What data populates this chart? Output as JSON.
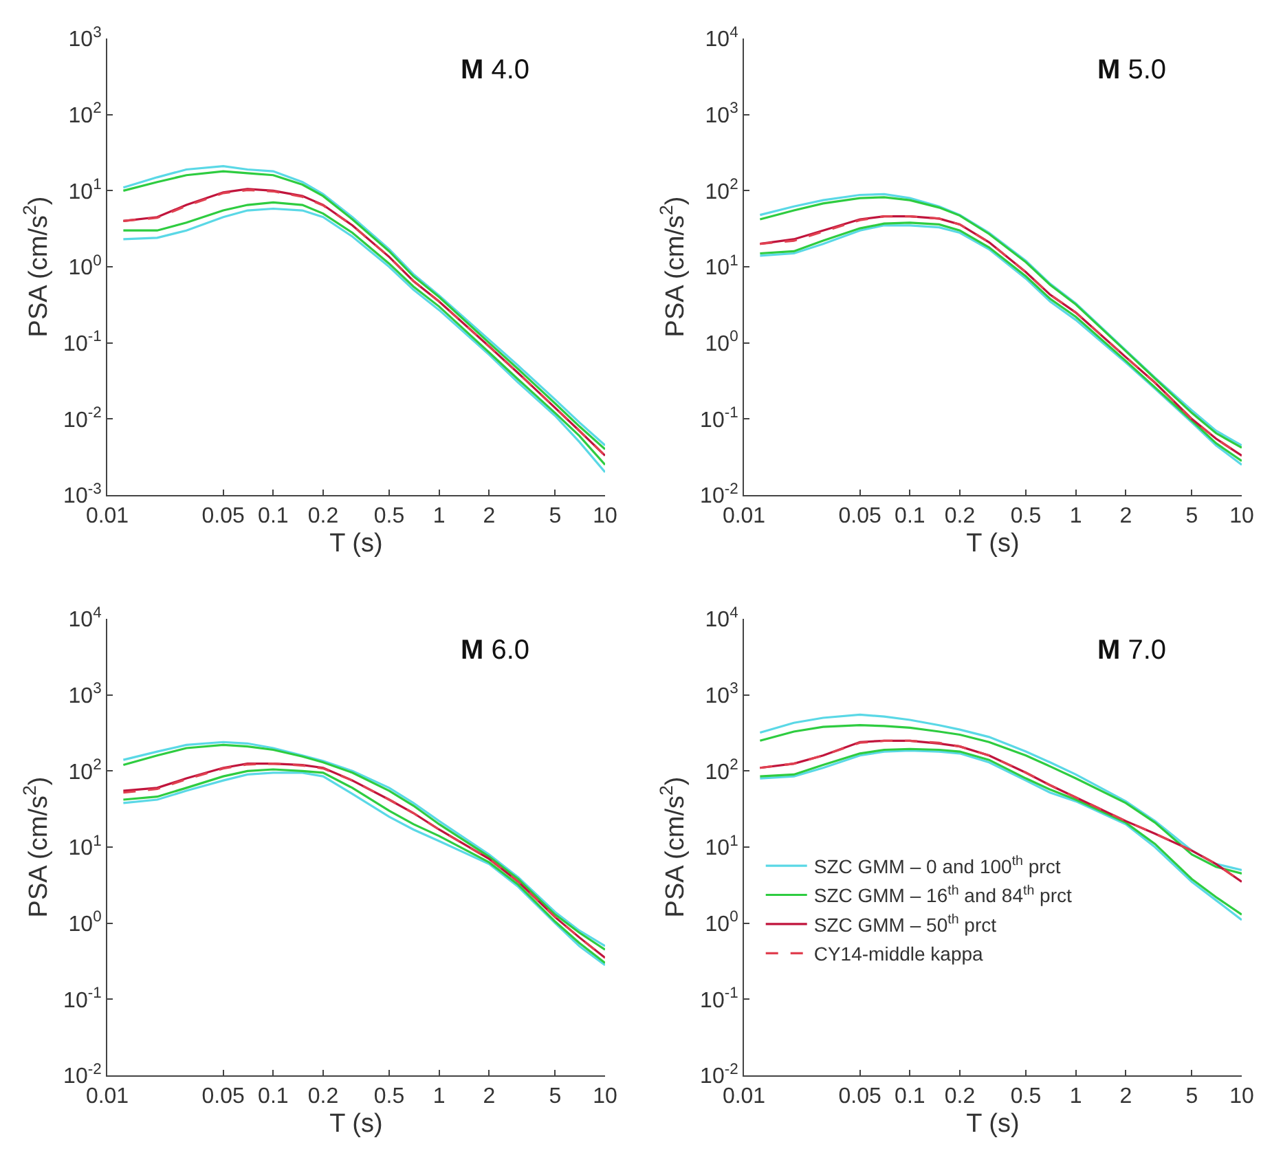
{
  "chart_data": [
    {
      "type": "line",
      "title": "M 4.0",
      "xlabel": "T (s)",
      "ylabel": "PSA (cm/s$^{2}$)",
      "log": "xy",
      "grid": false,
      "legend": false,
      "x": [
        0.0125,
        0.02,
        0.03,
        0.05,
        0.07,
        0.1,
        0.15,
        0.2,
        0.3,
        0.5,
        0.7,
        1,
        2,
        3,
        5,
        7,
        10
      ],
      "xlim": [
        0.01,
        10
      ],
      "xticks": [
        0.01,
        0.05,
        0.1,
        0.2,
        0.5,
        1,
        2,
        5,
        10
      ],
      "ylim": [
        0.001,
        1000
      ],
      "yticks": [
        {
          "value": 0.001,
          "label": "10$^{-3}$"
        },
        {
          "value": 0.01,
          "label": "10$^{-2}$"
        },
        {
          "value": 0.1,
          "label": "10$^{-1}$"
        },
        {
          "value": 1,
          "label": "10$^{0}$"
        },
        {
          "value": 10,
          "label": "10$^{1}$"
        },
        {
          "value": 100,
          "label": "10$^{2}$"
        },
        {
          "value": 1000,
          "label": "10$^{3}$"
        }
      ],
      "series": [
        {
          "color": "#5ad8e6",
          "values": [
            11,
            15,
            19,
            21,
            19,
            18,
            13,
            9,
            4.5,
            1.7,
            0.8,
            0.42,
            0.11,
            0.05,
            0.018,
            0.009,
            0.0045
          ]
        },
        {
          "color": "#5ad8e6",
          "values": [
            2.3,
            2.4,
            3,
            4.5,
            5.5,
            5.8,
            5.5,
            4.5,
            2.5,
            1.0,
            0.5,
            0.27,
            0.07,
            0.03,
            0.011,
            0.005,
            0.002
          ]
        },
        {
          "color": "#2ecc40",
          "values": [
            10,
            13,
            16,
            18,
            17,
            16,
            12,
            8.5,
            4.2,
            1.6,
            0.75,
            0.4,
            0.1,
            0.045,
            0.016,
            0.008,
            0.004
          ]
        },
        {
          "color": "#2ecc40",
          "values": [
            3,
            3,
            3.8,
            5.5,
            6.5,
            7,
            6.5,
            5,
            2.8,
            1.1,
            0.55,
            0.3,
            0.075,
            0.033,
            0.012,
            0.006,
            0.0025
          ]
        },
        {
          "color": "#c0143c",
          "values": [
            4,
            4.5,
            6.5,
            9.5,
            10.5,
            10,
            8.5,
            6.5,
            3.5,
            1.35,
            0.65,
            0.35,
            0.09,
            0.04,
            0.014,
            0.007,
            0.0033
          ]
        },
        {
          "color": "#e04050",
          "line_style": "dashed",
          "values": [
            4,
            4.4,
            6.3,
            9.3,
            10.2,
            9.8,
            8.3,
            6.4,
            3.5,
            1.35,
            0.65,
            0.35,
            0.09,
            0.04,
            0.014,
            0.007,
            0.0033
          ]
        }
      ]
    },
    {
      "type": "line",
      "title": "M 5.0",
      "xlabel": "T (s)",
      "ylabel": "PSA (cm/s$^{2}$)",
      "log": "xy",
      "grid": false,
      "legend": false,
      "x": [
        0.0125,
        0.02,
        0.03,
        0.05,
        0.07,
        0.1,
        0.15,
        0.2,
        0.3,
        0.5,
        0.7,
        1,
        2,
        3,
        5,
        7,
        10
      ],
      "xlim": [
        0.01,
        10
      ],
      "xticks": [
        0.01,
        0.05,
        0.1,
        0.2,
        0.5,
        1,
        2,
        5,
        10
      ],
      "ylim": [
        0.01,
        10000
      ],
      "yticks": [
        {
          "value": 0.01,
          "label": "10$^{-2}$"
        },
        {
          "value": 0.1,
          "label": "10$^{-1}$"
        },
        {
          "value": 1,
          "label": "10$^{0}$"
        },
        {
          "value": 10,
          "label": "10$^{1}$"
        },
        {
          "value": 100,
          "label": "10$^{2}$"
        },
        {
          "value": 1000,
          "label": "10$^{3}$"
        },
        {
          "value": 10000,
          "label": "10$^{4}$"
        }
      ],
      "series": [
        {
          "color": "#5ad8e6",
          "values": [
            48,
            62,
            75,
            88,
            90,
            80,
            62,
            48,
            28,
            12,
            6,
            3.3,
            0.8,
            0.35,
            0.13,
            0.07,
            0.045
          ]
        },
        {
          "color": "#5ad8e6",
          "values": [
            14,
            15,
            20,
            30,
            35,
            35,
            33,
            28,
            17,
            7,
            3.5,
            2,
            0.55,
            0.25,
            0.09,
            0.045,
            0.025
          ]
        },
        {
          "color": "#2ecc40",
          "values": [
            42,
            55,
            68,
            80,
            82,
            75,
            60,
            47,
            27,
            11.5,
            5.8,
            3.2,
            0.78,
            0.34,
            0.12,
            0.065,
            0.042
          ]
        },
        {
          "color": "#2ecc40",
          "values": [
            15,
            16,
            22,
            32,
            37,
            38,
            36,
            30,
            18,
            7.5,
            3.8,
            2.2,
            0.58,
            0.26,
            0.095,
            0.048,
            0.028
          ]
        },
        {
          "color": "#c0143c",
          "values": [
            20,
            23,
            30,
            42,
            46,
            46,
            43,
            36,
            21,
            8.5,
            4.3,
            2.5,
            0.65,
            0.3,
            0.1,
            0.055,
            0.033
          ]
        },
        {
          "color": "#e04050",
          "line_style": "dashed",
          "values": [
            20,
            22,
            29,
            41,
            46,
            46,
            43,
            36,
            21,
            8.5,
            4.3,
            2.5,
            0.65,
            0.3,
            0.1,
            0.055,
            0.033
          ]
        }
      ]
    },
    {
      "type": "line",
      "title": "M 6.0",
      "xlabel": "T (s)",
      "ylabel": "PSA (cm/s$^{2}$)",
      "log": "xy",
      "grid": false,
      "legend": false,
      "x": [
        0.0125,
        0.02,
        0.03,
        0.05,
        0.07,
        0.1,
        0.15,
        0.2,
        0.3,
        0.5,
        0.7,
        1,
        2,
        3,
        5,
        7,
        10
      ],
      "xlim": [
        0.01,
        10
      ],
      "xticks": [
        0.01,
        0.05,
        0.1,
        0.2,
        0.5,
        1,
        2,
        5,
        10
      ],
      "ylim": [
        0.01,
        10000
      ],
      "yticks": [
        {
          "value": 0.01,
          "label": "10$^{-2}$"
        },
        {
          "value": 0.1,
          "label": "10$^{-1}$"
        },
        {
          "value": 1,
          "label": "10$^{0}$"
        },
        {
          "value": 10,
          "label": "10$^{1}$"
        },
        {
          "value": 100,
          "label": "10$^{2}$"
        },
        {
          "value": 1000,
          "label": "10$^{3}$"
        },
        {
          "value": 10000,
          "label": "10$^{4}$"
        }
      ],
      "series": [
        {
          "color": "#5ad8e6",
          "values": [
            140,
            180,
            220,
            240,
            230,
            200,
            160,
            135,
            100,
            60,
            38,
            22,
            8,
            4,
            1.4,
            0.8,
            0.5
          ]
        },
        {
          "color": "#5ad8e6",
          "values": [
            38,
            42,
            55,
            75,
            90,
            95,
            95,
            85,
            50,
            25,
            17,
            12,
            6,
            3,
            1.0,
            0.5,
            0.28
          ]
        },
        {
          "color": "#2ecc40",
          "values": [
            120,
            160,
            200,
            220,
            210,
            190,
            155,
            130,
            95,
            55,
            35,
            20,
            7.5,
            3.8,
            1.3,
            0.75,
            0.45
          ]
        },
        {
          "color": "#2ecc40",
          "values": [
            42,
            46,
            60,
            85,
            100,
            105,
            100,
            95,
            60,
            30,
            20,
            14,
            6.3,
            3.2,
            1.05,
            0.55,
            0.3
          ]
        },
        {
          "color": "#c0143c",
          "values": [
            55,
            60,
            80,
            110,
            125,
            125,
            120,
            110,
            75,
            42,
            28,
            17,
            7,
            3.5,
            1.2,
            0.65,
            0.35
          ]
        },
        {
          "color": "#e04050",
          "line_style": "dashed",
          "values": [
            52,
            58,
            78,
            108,
            122,
            125,
            118,
            108,
            75,
            42,
            28,
            17,
            7,
            3.5,
            1.2,
            0.65,
            0.35
          ]
        }
      ]
    },
    {
      "type": "line",
      "title": "M 7.0",
      "xlabel": "T (s)",
      "ylabel": "PSA (cm/s$^{2}$)",
      "log": "xy",
      "grid": false,
      "legend": "bottom left",
      "x": [
        0.0125,
        0.02,
        0.03,
        0.05,
        0.07,
        0.1,
        0.15,
        0.2,
        0.3,
        0.5,
        0.7,
        1,
        2,
        3,
        5,
        7,
        10
      ],
      "xlim": [
        0.01,
        10
      ],
      "xticks": [
        0.01,
        0.05,
        0.1,
        0.2,
        0.5,
        1,
        2,
        5,
        10
      ],
      "ylim": [
        0.01,
        10000
      ],
      "yticks": [
        {
          "value": 0.01,
          "label": "10$^{-2}$"
        },
        {
          "value": 0.1,
          "label": "10$^{-1}$"
        },
        {
          "value": 1,
          "label": "10$^{0}$"
        },
        {
          "value": 10,
          "label": "10$^{1}$"
        },
        {
          "value": 100,
          "label": "10$^{2}$"
        },
        {
          "value": 1000,
          "label": "10$^{3}$"
        },
        {
          "value": 10000,
          "label": "10$^{4}$"
        }
      ],
      "series": [
        {
          "name": "SZC GMM – 0 and 100$^{th}$ prct",
          "color": "#5ad8e6",
          "values": [
            320,
            430,
            500,
            550,
            520,
            470,
            400,
            350,
            280,
            180,
            130,
            90,
            40,
            22,
            9,
            6,
            5
          ]
        },
        {
          "color": "#5ad8e6",
          "values": [
            80,
            85,
            110,
            160,
            180,
            185,
            180,
            170,
            130,
            75,
            52,
            40,
            20,
            10,
            3.5,
            2,
            1.1
          ]
        },
        {
          "name": "SZC GMM – 16$^{th}$ and 84$^{th}$ prct",
          "color": "#2ecc40",
          "values": [
            250,
            330,
            380,
            400,
            390,
            370,
            330,
            300,
            240,
            160,
            115,
            80,
            38,
            21,
            8,
            5.5,
            4.5
          ]
        },
        {
          "color": "#2ecc40",
          "values": [
            85,
            90,
            120,
            170,
            190,
            195,
            190,
            180,
            140,
            80,
            57,
            42,
            21,
            11,
            3.8,
            2.2,
            1.3
          ]
        },
        {
          "name": "SZC GMM – 50$^{th}$ prct",
          "color": "#c0143c",
          "values": [
            110,
            125,
            160,
            240,
            250,
            250,
            230,
            210,
            160,
            95,
            65,
            45,
            22,
            15,
            9,
            6,
            3.5
          ]
        },
        {
          "name": "CY14-middle kappa",
          "color": "#e04050",
          "line_style": "dashed",
          "values": [
            110,
            125,
            160,
            235,
            250,
            250,
            235,
            210,
            160,
            95,
            65,
            45,
            22,
            15,
            9,
            6,
            3.5
          ]
        }
      ]
    }
  ]
}
